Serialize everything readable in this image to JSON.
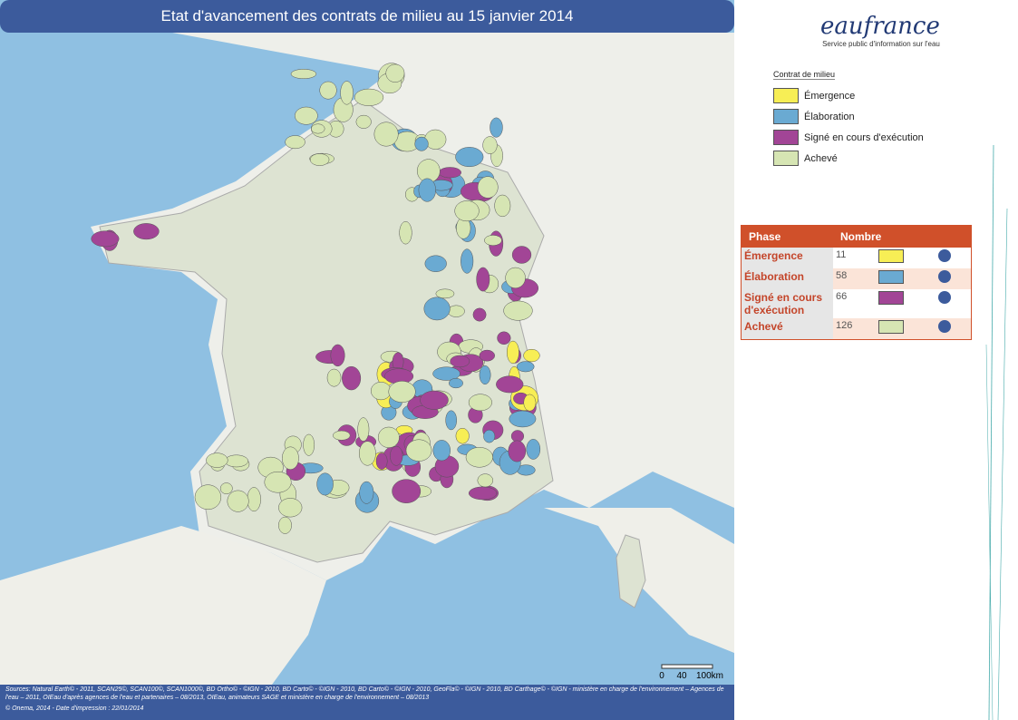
{
  "header": {
    "title": "Etat d'avancement des contrats de milieu au 15 janvier 2014"
  },
  "logo": {
    "name": "eaufrance",
    "tagline": "Service public d'information sur l'eau"
  },
  "legend": {
    "title": "Contrat de milieu",
    "items": [
      {
        "label": "Émergence",
        "color": "#f7ee55"
      },
      {
        "label": "Élaboration",
        "color": "#6aaad2"
      },
      {
        "label": "Signé en cours d'exécution",
        "color": "#a24596"
      },
      {
        "label": "Achevé",
        "color": "#d6e5b3"
      }
    ]
  },
  "table": {
    "headers": [
      "Phase",
      "Nombre"
    ],
    "rows": [
      [
        "Émergence",
        11
      ],
      [
        "Élaboration",
        58
      ],
      [
        "Signé en cours d'exécution",
        66
      ],
      [
        "Achevé",
        126
      ]
    ]
  },
  "scale": {
    "labels": [
      "0",
      "40",
      "100km"
    ]
  },
  "footer": {
    "sources": "Sources: Natural Earth© - 2011, SCAN25©, SCAN100©, SCAN1000©, BD Ortho© - ©IGN - 2010, BD Carto© - ©IGN - 2010, BD Carto© - ©IGN - 2010, GeoFla© - ©IGN - 2010, BD Carthage© - ©IGN - ministère en charge de l'environnement – Agences de l'eau – 2011, OIEau d'après agences de l'eau et partenaires – 08/2013, OIEau, animateurs SAGE et ministère en charge de l'environnement – 08/2013",
    "credit": "© Onema, 2014 - Date d'impression : 22/01/2014"
  }
}
